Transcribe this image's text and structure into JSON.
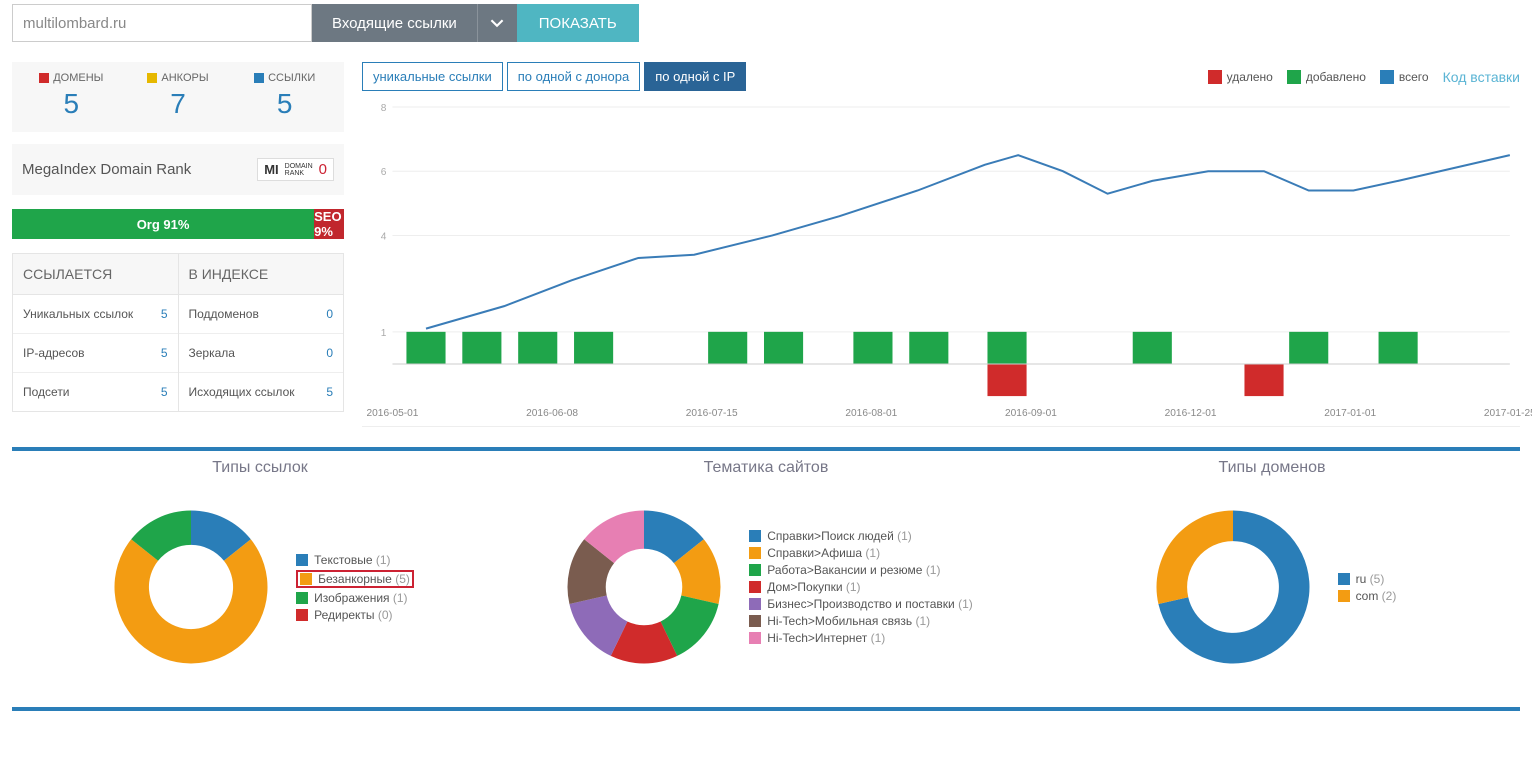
{
  "topbar": {
    "domain_value": "multilombard.ru",
    "dropdown_label": "Входящие ссылки",
    "show_label": "ПОКАЗАТЬ"
  },
  "stats": {
    "items": [
      {
        "label": "ДОМЕНЫ",
        "value": "5",
        "color": "#d02b2b"
      },
      {
        "label": "АНКОРЫ",
        "value": "7",
        "color": "#e6b800"
      },
      {
        "label": "ССЫЛКИ",
        "value": "5",
        "color": "#2a7eb8"
      }
    ]
  },
  "rank": {
    "label": "MegaIndex Domain Rank",
    "mi": "MI",
    "mi_sub1": "DOMAIN",
    "mi_sub2": "RANK",
    "value": "0"
  },
  "org_bar": {
    "org_label": "Org 91%",
    "org_pct": 91,
    "seo_label": "SEO 9%",
    "seo_pct": 9,
    "org_color": "#1fa54a",
    "seo_color": "#c1272d"
  },
  "tables": {
    "left_header": "ССЫЛАЕТСЯ",
    "right_header": "В ИНДЕКСЕ",
    "left_rows": [
      {
        "label": "Уникальных ссылок",
        "value": "5"
      },
      {
        "label": "IP-адресов",
        "value": "5"
      },
      {
        "label": "Подсети",
        "value": "5"
      }
    ],
    "right_rows": [
      {
        "label": "Поддоменов",
        "value": "0"
      },
      {
        "label": "Зеркала",
        "value": "0"
      },
      {
        "label": "Исходящих ссылок",
        "value": "5"
      }
    ]
  },
  "tabs": {
    "items": [
      {
        "label": "уникальные ссылки",
        "active": false
      },
      {
        "label": "по одной с донора",
        "active": false
      },
      {
        "label": "по одной с IP",
        "active": true
      }
    ]
  },
  "chart_legend": {
    "items": [
      {
        "label": "удалено",
        "color": "#d02b2b"
      },
      {
        "label": "добавлено",
        "color": "#1fa54a"
      },
      {
        "label": "всего",
        "color": "#2a7eb8"
      }
    ],
    "embed_link": "Код вставки"
  },
  "line_chart": {
    "type": "line+bar",
    "ylim": [
      -1,
      8
    ],
    "ytick_step": 2,
    "yticks": [
      1,
      4,
      6,
      8
    ],
    "x_labels": [
      "2016-05-01",
      "2016-06-08",
      "2016-07-15",
      "2016-08-01",
      "2016-09-01",
      "2016-12-01",
      "2017-01-01",
      "2017-01-25"
    ],
    "line_color": "#3a7cb7",
    "line_width": 2,
    "line_points": [
      {
        "x": 0.03,
        "y": 1.1
      },
      {
        "x": 0.1,
        "y": 1.8
      },
      {
        "x": 0.16,
        "y": 2.6
      },
      {
        "x": 0.22,
        "y": 3.3
      },
      {
        "x": 0.27,
        "y": 3.4
      },
      {
        "x": 0.34,
        "y": 4.0
      },
      {
        "x": 0.4,
        "y": 4.6
      },
      {
        "x": 0.47,
        "y": 5.4
      },
      {
        "x": 0.53,
        "y": 6.2
      },
      {
        "x": 0.56,
        "y": 6.5
      },
      {
        "x": 0.6,
        "y": 6.0
      },
      {
        "x": 0.64,
        "y": 5.3
      },
      {
        "x": 0.68,
        "y": 5.7
      },
      {
        "x": 0.73,
        "y": 6.0
      },
      {
        "x": 0.78,
        "y": 6.0
      },
      {
        "x": 0.82,
        "y": 5.4
      },
      {
        "x": 0.86,
        "y": 5.4
      },
      {
        "x": 0.9,
        "y": 5.7
      },
      {
        "x": 0.95,
        "y": 6.1
      },
      {
        "x": 1.0,
        "y": 6.5
      }
    ],
    "bars": [
      {
        "x": 0.03,
        "h": 1,
        "color": "#1fa54a"
      },
      {
        "x": 0.08,
        "h": 1,
        "color": "#1fa54a"
      },
      {
        "x": 0.13,
        "h": 1,
        "color": "#1fa54a"
      },
      {
        "x": 0.18,
        "h": 1,
        "color": "#1fa54a"
      },
      {
        "x": 0.3,
        "h": 1,
        "color": "#1fa54a"
      },
      {
        "x": 0.35,
        "h": 1,
        "color": "#1fa54a"
      },
      {
        "x": 0.43,
        "h": 1,
        "color": "#1fa54a"
      },
      {
        "x": 0.48,
        "h": 1,
        "color": "#1fa54a"
      },
      {
        "x": 0.55,
        "h": -1,
        "color": "#d02b2b"
      },
      {
        "x": 0.55,
        "h": 1,
        "color": "#1fa54a"
      },
      {
        "x": 0.68,
        "h": 1,
        "color": "#1fa54a"
      },
      {
        "x": 0.78,
        "h": -1,
        "color": "#d02b2b"
      },
      {
        "x": 0.82,
        "h": 1,
        "color": "#1fa54a"
      },
      {
        "x": 0.9,
        "h": 1,
        "color": "#1fa54a"
      }
    ],
    "bar_width": 0.035,
    "grid_color": "#eeeeee",
    "axis_color": "#cccccc",
    "background": "#ffffff"
  },
  "donuts": {
    "link_types": {
      "title": "Типы ссылок",
      "inner_ratio": 0.55,
      "slices": [
        {
          "label": "Текстовые",
          "count": "(1)",
          "value": 1,
          "color": "#2a7eb8"
        },
        {
          "label": "Безанкорные",
          "count": "(5)",
          "value": 5,
          "color": "#f39c12",
          "highlight": true
        },
        {
          "label": "Изображения",
          "count": "(1)",
          "value": 1,
          "color": "#1fa54a"
        },
        {
          "label": "Редиректы",
          "count": "(0)",
          "value": 0,
          "color": "#d02b2b"
        }
      ]
    },
    "themes": {
      "title": "Тематика сайтов",
      "inner_ratio": 0.5,
      "slices": [
        {
          "label": "Справки>Поиск людей",
          "count": "(1)",
          "value": 1,
          "color": "#2a7eb8"
        },
        {
          "label": "Справки>Афиша",
          "count": "(1)",
          "value": 1,
          "color": "#f39c12"
        },
        {
          "label": "Работа>Вакансии и резюме",
          "count": "(1)",
          "value": 1,
          "color": "#1fa54a"
        },
        {
          "label": "Дом>Покупки",
          "count": "(1)",
          "value": 1,
          "color": "#d02b2b"
        },
        {
          "label": "Бизнес>Производство и поставки",
          "count": "(1)",
          "value": 1,
          "color": "#8e6bb8"
        },
        {
          "label": "Hi-Tech>Мобильная связь",
          "count": "(1)",
          "value": 1,
          "color": "#7a5c4f"
        },
        {
          "label": "Hi-Tech>Интернет",
          "count": "(1)",
          "value": 1,
          "color": "#e77fb3"
        }
      ]
    },
    "domain_types": {
      "title": "Типы доменов",
      "inner_ratio": 0.6,
      "slices": [
        {
          "label": "ru",
          "count": "(5)",
          "value": 5,
          "color": "#2a7eb8"
        },
        {
          "label": "com",
          "count": "(2)",
          "value": 2,
          "color": "#f39c12"
        }
      ]
    }
  }
}
